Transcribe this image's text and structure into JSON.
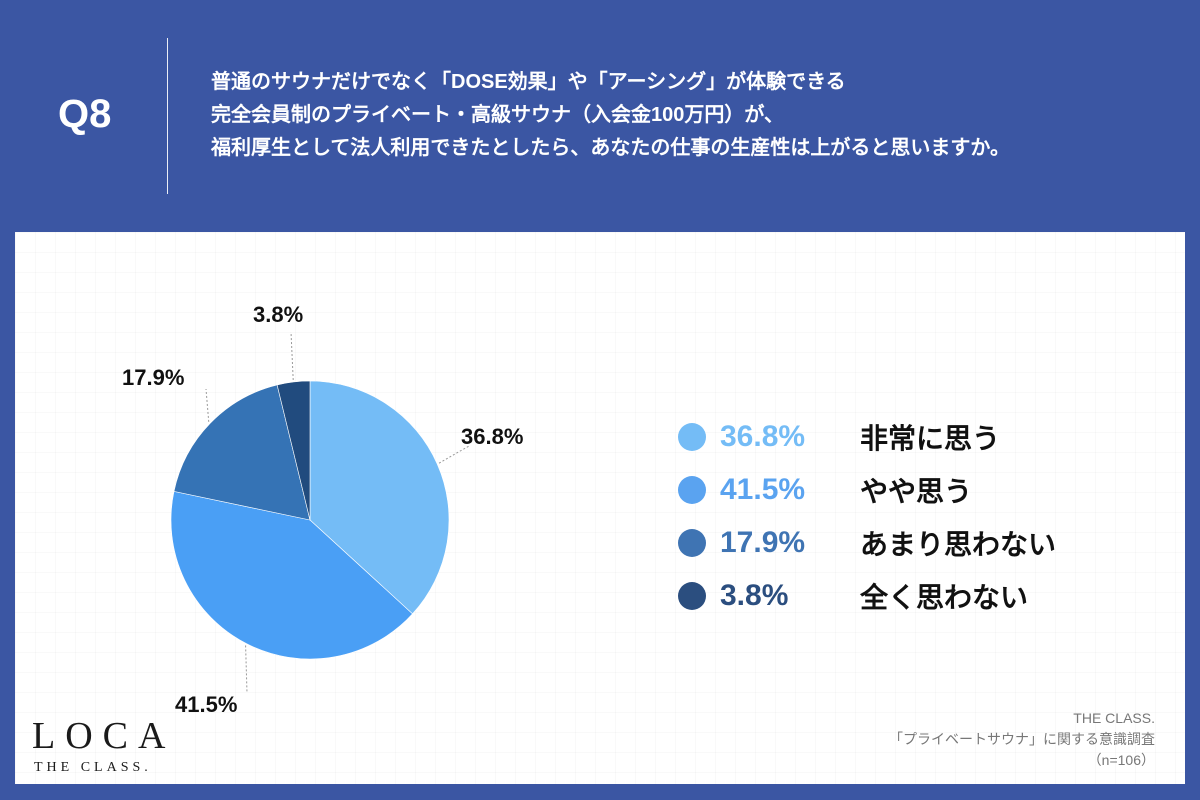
{
  "header": {
    "question_number": "Q8",
    "question_lines": [
      "普通のサウナだけでなく「DOSE効果」や「アーシング」が体験できる",
      "完全会員制のプライベート・高級サウナ（入会金100万円）が、",
      "福利厚生として法人利用できたとしたら、あなたの仕事の生産性は上がると思いますか。"
    ]
  },
  "colors": {
    "background": "#3b56a3",
    "card": "#ffffff",
    "slice_1": "#74bcf6",
    "slice_2": "#4a9ff5",
    "slice_3": "#3573b5",
    "slice_4": "#214b7e"
  },
  "legend": {
    "items": [
      {
        "pct": "36.8%",
        "label": "非常に思う",
        "color": "#74bcf6"
      },
      {
        "pct": "41.5%",
        "label": "やや思う",
        "color": "#5aa3f0"
      },
      {
        "pct": "17.9%",
        "label": "あまり思わない",
        "color": "#3f74b3"
      },
      {
        "pct": "3.8%",
        "label": "全く思わない",
        "color": "#2b4e7f"
      }
    ]
  },
  "pie_labels": [
    "36.8%",
    "41.5%",
    "17.9%",
    "3.8%"
  ],
  "logo": {
    "main": "LOCA",
    "sub": "THE CLASS."
  },
  "source": {
    "line1": "THE CLASS.",
    "line2": "「プライベートサウナ」に関する意識調査",
    "line3": "（n=106）"
  },
  "chart_data": {
    "type": "pie",
    "title": "Q8 普通のサウナだけでなく「DOSE効果」や「アーシング」が体験できる完全会員制のプライベート・高級サウナ（入会金100万円）が、福利厚生として法人利用できたとしたら、あなたの仕事の生産性は上がると思いますか。",
    "categories": [
      "非常に思う",
      "やや思う",
      "あまり思わない",
      "全く思わない"
    ],
    "values": [
      36.8,
      41.5,
      17.9,
      3.8
    ],
    "colors": [
      "#74bcf6",
      "#4a9ff5",
      "#3573b5",
      "#214b7e"
    ],
    "unit": "%",
    "sample_size": "n=106",
    "start_angle": "12 o'clock, clockwise",
    "legend_position": "right"
  }
}
